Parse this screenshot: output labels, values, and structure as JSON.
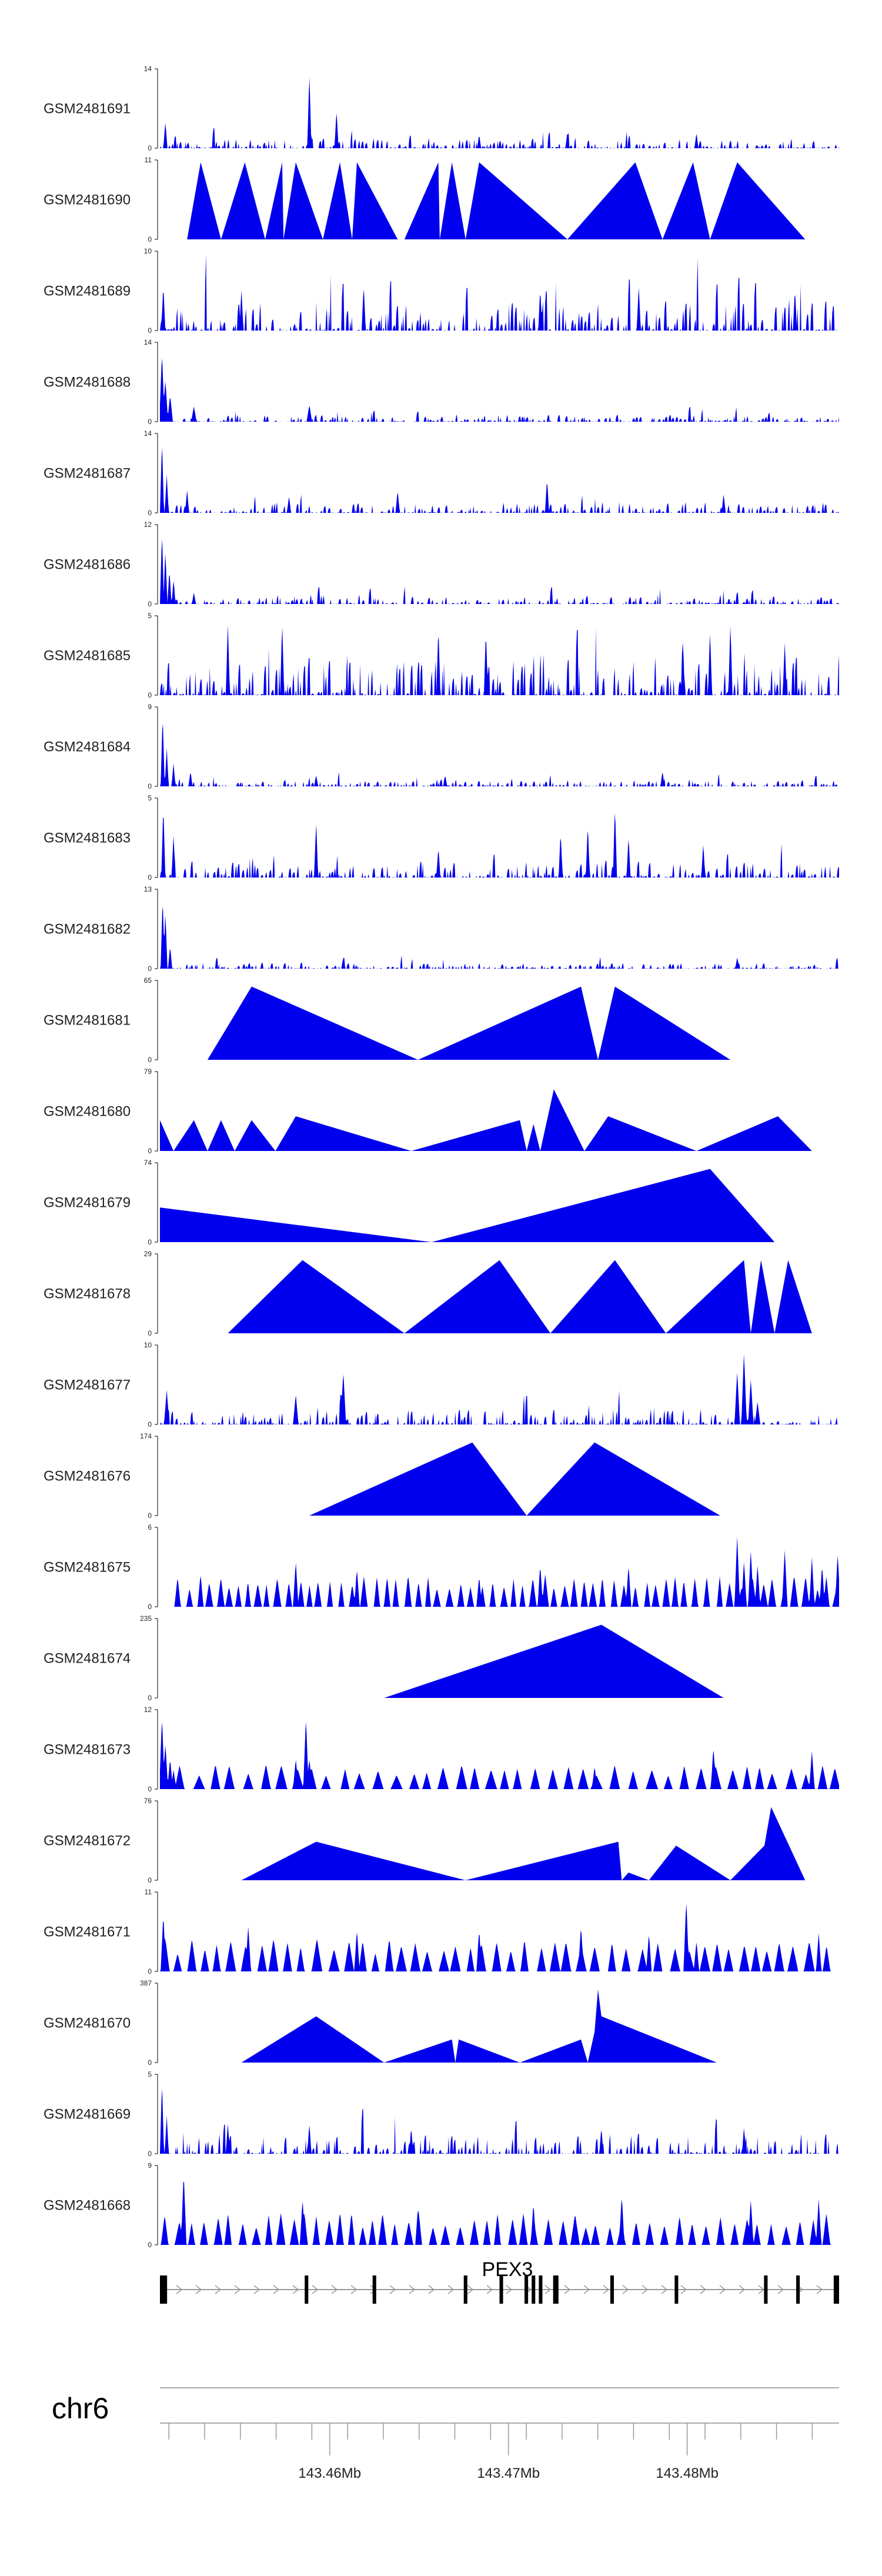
{
  "chart_data": {
    "type": "area",
    "chromosome": "chr6",
    "xlim": [
      143.4505,
      143.4885
    ],
    "x_axis_unit": "Mb",
    "x_axis_ticks": [
      143.451,
      143.453,
      143.455,
      143.457,
      143.459,
      143.461,
      143.463,
      143.465,
      143.467,
      143.469,
      143.471,
      143.473,
      143.475,
      143.477,
      143.479,
      143.481,
      143.483,
      143.485,
      143.487
    ],
    "x_axis_tick_labels": [
      {
        "value": 143.46,
        "label": "143.46Mb"
      },
      {
        "value": 143.47,
        "label": "143.47Mb"
      },
      {
        "value": 143.48,
        "label": "143.48Mb"
      }
    ],
    "colors": {
      "fill": "#0000ee",
      "axis": "#000000",
      "gene": "#000000",
      "intron": "#999999"
    },
    "gene": {
      "name": "PEX3",
      "strand": "+",
      "start": 143.4505,
      "end": 143.4885,
      "exons": [
        [
          143.4505,
          143.4509
        ],
        [
          143.4586,
          143.4588
        ],
        [
          143.4624,
          143.4626
        ],
        [
          143.4675,
          143.4677
        ],
        [
          143.4695,
          143.4697
        ],
        [
          143.4709,
          143.4711
        ],
        [
          143.4713,
          143.4715
        ],
        [
          143.4717,
          143.4719
        ],
        [
          143.4725,
          143.4728
        ],
        [
          143.4757,
          143.4759
        ],
        [
          143.4793,
          143.4795
        ],
        [
          143.4843,
          143.4845
        ],
        [
          143.4861,
          143.4863
        ],
        [
          143.4882,
          143.4885
        ]
      ]
    },
    "tracks": [
      {
        "name": "GSM2481691",
        "ymax": 14,
        "seed": 11,
        "kind": "noise",
        "peak_frac": 0.14,
        "spikes": [
          [
            0.008,
            0.35
          ],
          [
            0.22,
            1.0
          ],
          [
            0.26,
            0.5
          ],
          [
            0.47,
            0.18
          ],
          [
            0.6,
            0.22
          ],
          [
            0.79,
            0.2
          ]
        ],
        "spike_w": 0.003
      },
      {
        "name": "GSM2481690",
        "ymax": 11,
        "points": [
          [
            0.04,
            0
          ],
          [
            0.06,
            1
          ],
          [
            0.09,
            0
          ],
          [
            0.125,
            1
          ],
          [
            0.155,
            0
          ],
          [
            0.18,
            1
          ],
          [
            0.182,
            0
          ],
          [
            0.2,
            1
          ],
          [
            0.24,
            0
          ],
          [
            0.265,
            1
          ],
          [
            0.283,
            0
          ],
          [
            0.29,
            1
          ],
          [
            0.35,
            0
          ],
          [
            0.36,
            0
          ],
          [
            0.41,
            1
          ],
          [
            0.412,
            0
          ],
          [
            0.43,
            1
          ],
          [
            0.45,
            0
          ],
          [
            0.47,
            1
          ],
          [
            0.6,
            0
          ],
          [
            0.7,
            1
          ],
          [
            0.74,
            0
          ],
          [
            0.785,
            1
          ],
          [
            0.81,
            0
          ],
          [
            0.85,
            1
          ],
          [
            0.95,
            0
          ]
        ]
      },
      {
        "name": "GSM2481689",
        "ymax": 10,
        "seed": 23,
        "kind": "noise",
        "peak_frac": 0.45,
        "spikes": [
          [
            0.005,
            0.6
          ],
          [
            0.12,
            0.55
          ],
          [
            0.3,
            0.6
          ],
          [
            0.56,
            0.55
          ],
          [
            0.705,
            0.6
          ],
          [
            0.935,
            0.55
          ]
        ],
        "spike_w": 0.003
      },
      {
        "name": "GSM2481688",
        "ymax": 14,
        "seed": 37,
        "kind": "noise",
        "peak_frac": 0.1,
        "spikes": [
          [
            0.003,
            0.9
          ],
          [
            0.008,
            0.55
          ],
          [
            0.015,
            0.35
          ],
          [
            0.05,
            0.2
          ],
          [
            0.22,
            0.22
          ]
        ],
        "spike_w": 0.004
      },
      {
        "name": "GSM2481687",
        "ymax": 14,
        "seed": 41,
        "kind": "noise",
        "peak_frac": 0.14,
        "spikes": [
          [
            0.003,
            0.95
          ],
          [
            0.01,
            0.5
          ],
          [
            0.04,
            0.3
          ],
          [
            0.19,
            0.22
          ],
          [
            0.35,
            0.3
          ],
          [
            0.57,
            0.45
          ],
          [
            0.83,
            0.25
          ]
        ],
        "spike_w": 0.003
      },
      {
        "name": "GSM2481686",
        "ymax": 12,
        "seed": 53,
        "kind": "noise",
        "peak_frac": 0.12,
        "spikes": [
          [
            0.003,
            0.95
          ],
          [
            0.008,
            0.7
          ],
          [
            0.014,
            0.45
          ],
          [
            0.02,
            0.3
          ],
          [
            0.05,
            0.15
          ]
        ],
        "spike_w": 0.003
      },
      {
        "name": "GSM2481685",
        "ymax": 5,
        "seed": 61,
        "kind": "noise",
        "peak_frac": 0.55,
        "spikes": [
          [
            0.1,
            0.95
          ],
          [
            0.18,
            0.95
          ],
          [
            0.41,
            0.9
          ],
          [
            0.48,
            0.85
          ],
          [
            0.77,
            0.75
          ],
          [
            0.81,
            0.85
          ],
          [
            0.84,
            0.95
          ],
          [
            0.92,
            0.7
          ]
        ],
        "spike_w": 0.003
      },
      {
        "name": "GSM2481684",
        "ymax": 9,
        "seed": 71,
        "kind": "noise",
        "peak_frac": 0.1,
        "spikes": [
          [
            0.004,
            0.95
          ],
          [
            0.01,
            0.5
          ],
          [
            0.02,
            0.3
          ],
          [
            0.045,
            0.2
          ],
          [
            0.23,
            0.15
          ],
          [
            0.42,
            0.15
          ],
          [
            0.74,
            0.2
          ]
        ],
        "spike_w": 0.003
      },
      {
        "name": "GSM2481683",
        "ymax": 5,
        "seed": 83,
        "kind": "noise",
        "peak_frac": 0.25,
        "spikes": [
          [
            0.005,
            0.95
          ],
          [
            0.02,
            0.55
          ],
          [
            0.23,
            0.75
          ],
          [
            0.41,
            0.4
          ],
          [
            0.59,
            0.6
          ],
          [
            0.63,
            0.7
          ],
          [
            0.67,
            0.95
          ],
          [
            0.69,
            0.55
          ],
          [
            0.8,
            0.45
          ]
        ],
        "spike_w": 0.003
      },
      {
        "name": "GSM2481682",
        "ymax": 13,
        "seed": 97,
        "kind": "noise",
        "peak_frac": 0.08,
        "spikes": [
          [
            0.004,
            0.95
          ],
          [
            0.008,
            0.75
          ],
          [
            0.015,
            0.3
          ],
          [
            0.27,
            0.15
          ],
          [
            0.85,
            0.15
          ]
        ],
        "spike_w": 0.003
      },
      {
        "name": "GSM2481681",
        "ymax": 65,
        "points": [
          [
            0.07,
            0
          ],
          [
            0.135,
            0.95
          ],
          [
            0.38,
            0
          ],
          [
            0.62,
            0.95
          ],
          [
            0.645,
            0
          ],
          [
            0.67,
            0.95
          ],
          [
            0.84,
            0
          ]
        ]
      },
      {
        "name": "GSM2481680",
        "ymax": 79,
        "points": [
          [
            0.0,
            0.4
          ],
          [
            0.02,
            0
          ],
          [
            0.05,
            0.4
          ],
          [
            0.07,
            0
          ],
          [
            0.09,
            0.4
          ],
          [
            0.11,
            0
          ],
          [
            0.135,
            0.4
          ],
          [
            0.17,
            0
          ],
          [
            0.2,
            0.45
          ],
          [
            0.37,
            0
          ],
          [
            0.53,
            0.4
          ],
          [
            0.54,
            0
          ],
          [
            0.55,
            0.35
          ],
          [
            0.56,
            0
          ],
          [
            0.58,
            0.8
          ],
          [
            0.625,
            0
          ],
          [
            0.66,
            0.45
          ],
          [
            0.79,
            0
          ],
          [
            0.91,
            0.45
          ],
          [
            0.96,
            0
          ]
        ]
      },
      {
        "name": "GSM2481679",
        "ymax": 74,
        "points": [
          [
            0.0,
            0.45
          ],
          [
            0.4,
            0
          ],
          [
            0.81,
            0.95
          ],
          [
            0.905,
            0
          ]
        ]
      },
      {
        "name": "GSM2481678",
        "ymax": 29,
        "points": [
          [
            0.1,
            0
          ],
          [
            0.21,
            0.95
          ],
          [
            0.36,
            0
          ],
          [
            0.5,
            0.95
          ],
          [
            0.575,
            0
          ],
          [
            0.67,
            0.95
          ],
          [
            0.745,
            0
          ],
          [
            0.86,
            0.95
          ],
          [
            0.87,
            0
          ],
          [
            0.885,
            0.95
          ],
          [
            0.905,
            0
          ],
          [
            0.925,
            0.95
          ],
          [
            0.96,
            0
          ]
        ]
      },
      {
        "name": "GSM2481677",
        "ymax": 10,
        "seed": 109,
        "kind": "noise",
        "peak_frac": 0.22,
        "spikes": [
          [
            0.01,
            0.45
          ],
          [
            0.2,
            0.4
          ],
          [
            0.27,
            0.7
          ],
          [
            0.85,
            0.7
          ],
          [
            0.86,
            0.95
          ],
          [
            0.87,
            0.6
          ],
          [
            0.88,
            0.3
          ]
        ],
        "spike_w": 0.004
      },
      {
        "name": "GSM2481676",
        "ymax": 174,
        "points": [
          [
            0.22,
            0
          ],
          [
            0.46,
            0.95
          ],
          [
            0.54,
            0
          ],
          [
            0.64,
            0.95
          ],
          [
            0.825,
            0
          ]
        ]
      },
      {
        "name": "GSM2481675",
        "ymax": 6,
        "seed": 127,
        "kind": "tri",
        "tri_w": 0.012,
        "tri_h": 0.33,
        "tri_start": 0.02,
        "spikes": [
          [
            0.2,
            0.6
          ],
          [
            0.29,
            0.5
          ],
          [
            0.47,
            0.4
          ],
          [
            0.56,
            0.55
          ],
          [
            0.69,
            0.55
          ],
          [
            0.85,
            0.95
          ],
          [
            0.86,
            0.6
          ],
          [
            0.87,
            0.75
          ],
          [
            0.88,
            0.55
          ],
          [
            0.92,
            0.75
          ],
          [
            0.96,
            0.65
          ],
          [
            0.975,
            0.55
          ],
          [
            0.998,
            0.7
          ]
        ],
        "spike_w": 0.004
      },
      {
        "name": "GSM2481674",
        "ymax": 235,
        "points": [
          [
            0.33,
            0
          ],
          [
            0.65,
            0.95
          ],
          [
            0.83,
            0
          ]
        ]
      },
      {
        "name": "GSM2481673",
        "ymax": 12,
        "seed": 139,
        "kind": "tri",
        "tri_w": 0.018,
        "tri_h": 0.25,
        "tri_start": 0.02,
        "spikes": [
          [
            0.003,
            0.95
          ],
          [
            0.008,
            0.6
          ],
          [
            0.015,
            0.4
          ],
          [
            0.02,
            0.25
          ],
          [
            0.2,
            0.4
          ],
          [
            0.215,
            0.95
          ],
          [
            0.22,
            0.4
          ],
          [
            0.64,
            0.3
          ],
          [
            0.815,
            0.55
          ],
          [
            0.96,
            0.5
          ]
        ],
        "spike_w": 0.004
      },
      {
        "name": "GSM2481672",
        "ymax": 76,
        "points": [
          [
            0.12,
            0
          ],
          [
            0.23,
            0.5
          ],
          [
            0.45,
            0
          ],
          [
            0.675,
            0.5
          ],
          [
            0.68,
            0
          ],
          [
            0.69,
            0.1
          ],
          [
            0.72,
            0
          ],
          [
            0.76,
            0.45
          ],
          [
            0.84,
            0
          ],
          [
            0.89,
            0.45
          ],
          [
            0.9,
            0.95
          ],
          [
            0.95,
            0
          ]
        ]
      },
      {
        "name": "GSM2481671",
        "ymax": 11,
        "seed": 151,
        "kind": "tri",
        "tri_w": 0.016,
        "tri_h": 0.33,
        "tri_start": 0.0,
        "spikes": [
          [
            0.005,
            0.75
          ],
          [
            0.13,
            0.6
          ],
          [
            0.29,
            0.55
          ],
          [
            0.47,
            0.55
          ],
          [
            0.62,
            0.6
          ],
          [
            0.72,
            0.5
          ],
          [
            0.775,
            0.95
          ],
          [
            0.79,
            0.4
          ],
          [
            0.97,
            0.5
          ]
        ],
        "spike_w": 0.004
      },
      {
        "name": "GSM2481670",
        "ymax": 387,
        "points": [
          [
            0.12,
            0
          ],
          [
            0.23,
            0.6
          ],
          [
            0.33,
            0
          ],
          [
            0.43,
            0.3
          ],
          [
            0.435,
            0
          ],
          [
            0.44,
            0.3
          ],
          [
            0.53,
            0
          ],
          [
            0.62,
            0.3
          ],
          [
            0.63,
            0
          ],
          [
            0.64,
            0.4
          ],
          [
            0.645,
            0.95
          ],
          [
            0.65,
            0.6
          ],
          [
            0.82,
            0
          ]
        ]
      },
      {
        "name": "GSM2481669",
        "ymax": 5,
        "seed": 163,
        "kind": "noise",
        "peak_frac": 0.3,
        "spikes": [
          [
            0.003,
            0.95
          ],
          [
            0.01,
            0.5
          ],
          [
            0.1,
            0.4
          ],
          [
            0.22,
            0.4
          ],
          [
            0.37,
            0.35
          ],
          [
            0.65,
            0.35
          ],
          [
            0.86,
            0.35
          ]
        ],
        "spike_w": 0.003
      },
      {
        "name": "GSM2481668",
        "ymax": 9,
        "seed": 171,
        "kind": "tri",
        "tri_w": 0.014,
        "tri_h": 0.33,
        "tri_start": 0.0,
        "spikes": [
          [
            0.035,
            0.95
          ],
          [
            0.21,
            0.6
          ],
          [
            0.38,
            0.5
          ],
          [
            0.55,
            0.55
          ],
          [
            0.68,
            0.65
          ],
          [
            0.87,
            0.6
          ],
          [
            0.97,
            0.6
          ]
        ],
        "spike_w": 0.004
      }
    ]
  }
}
